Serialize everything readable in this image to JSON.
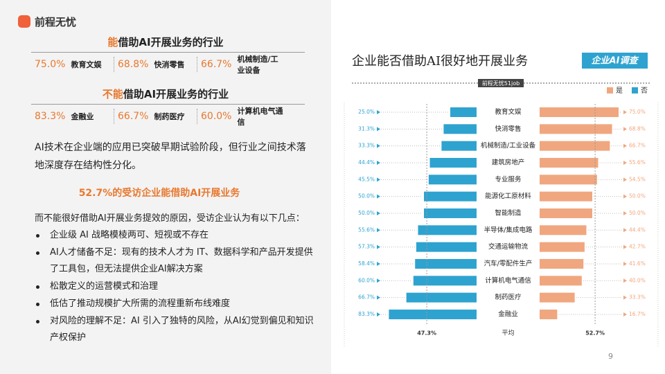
{
  "logo": "前程无忧",
  "can": {
    "title_highlight": "能",
    "title_rest": "借助AI开展业务的行业",
    "items": [
      {
        "pct": "75.0%",
        "name": "教育文娱"
      },
      {
        "pct": "68.8%",
        "name": "快消零售"
      },
      {
        "pct": "66.7%",
        "name": "机械制造/工业设备"
      }
    ]
  },
  "cannot": {
    "title_highlight": "不能",
    "title_rest": "借助AI开展业务的行业",
    "items": [
      {
        "pct": "83.3%",
        "name": "金融业"
      },
      {
        "pct": "66.7%",
        "name": "制药医疗"
      },
      {
        "pct": "60.0%",
        "name": "计算机电气通信"
      }
    ]
  },
  "paragraph": "AI技术在企业端的应用已突破早期试验阶段，但行业之间技术落地深度存在结构性分化。",
  "highlight": "52.7%的受访企业能借助AI开展业务",
  "intro": "而不能很好借助AI开展业务提效的原因，受访企业认为有以下几点：",
  "bullets": [
    "企业级 AI 战略模棱两可、短视或不存在",
    "AI人才储备不足：现有的技术人才为 IT、数据科学和产品开发提供了工具包，但无法提供企业AI解决方案",
    "松散定义的运营模式和治理",
    "低估了推动规模扩大所需的流程重新布线难度",
    "对风险的理解不足：AI 引入了独特的风险，从AI幻觉到偏见和知识产权保护"
  ],
  "page_number": "9",
  "chart_data": {
    "type": "diverging_bar",
    "title": "企业能否借助AI很好地开展业务",
    "badge": "企业AI调查",
    "source": "前程无忧51job",
    "average_label": "平均",
    "categories": [
      "教育文娱",
      "快消零售",
      "机械制造/工业设备",
      "建筑房地产",
      "专业服务",
      "能源化工原材料",
      "智能制造",
      "半导体/集成电路",
      "交通运输物流",
      "汽车/零配件生产",
      "计算机电气通信",
      "制药医疗",
      "金融业"
    ],
    "series": [
      {
        "name": "是",
        "color": "#f0a77f",
        "side": "right",
        "values": [
          75.0,
          68.8,
          66.7,
          55.6,
          54.5,
          50.0,
          50.0,
          44.4,
          42.7,
          41.6,
          40.0,
          33.3,
          16.7
        ],
        "value_labels": [
          "75.0%",
          "68.8%",
          "66.7%",
          "55.6%",
          "54.5%",
          "50.0%",
          "50.0%",
          "44.4%",
          "42.7%",
          "41.6%",
          "40.0%",
          "33.3%",
          "16.7%"
        ],
        "average": 52.7,
        "average_label": "52.7%"
      },
      {
        "name": "否",
        "color": "#2ea3d0",
        "side": "left",
        "values": [
          25.0,
          31.3,
          33.3,
          44.4,
          45.5,
          50.0,
          50.0,
          55.6,
          57.3,
          58.4,
          60.0,
          66.7,
          83.3
        ],
        "value_labels": [
          "25.0%",
          "31.3%",
          "33.3%",
          "44.4%",
          "45.5%",
          "50.0%",
          "50.0%",
          "55.6%",
          "57.3%",
          "58.4%",
          "60.0%",
          "66.7%",
          "83.3%"
        ],
        "average": 47.3,
        "average_label": "47.3%"
      }
    ]
  }
}
